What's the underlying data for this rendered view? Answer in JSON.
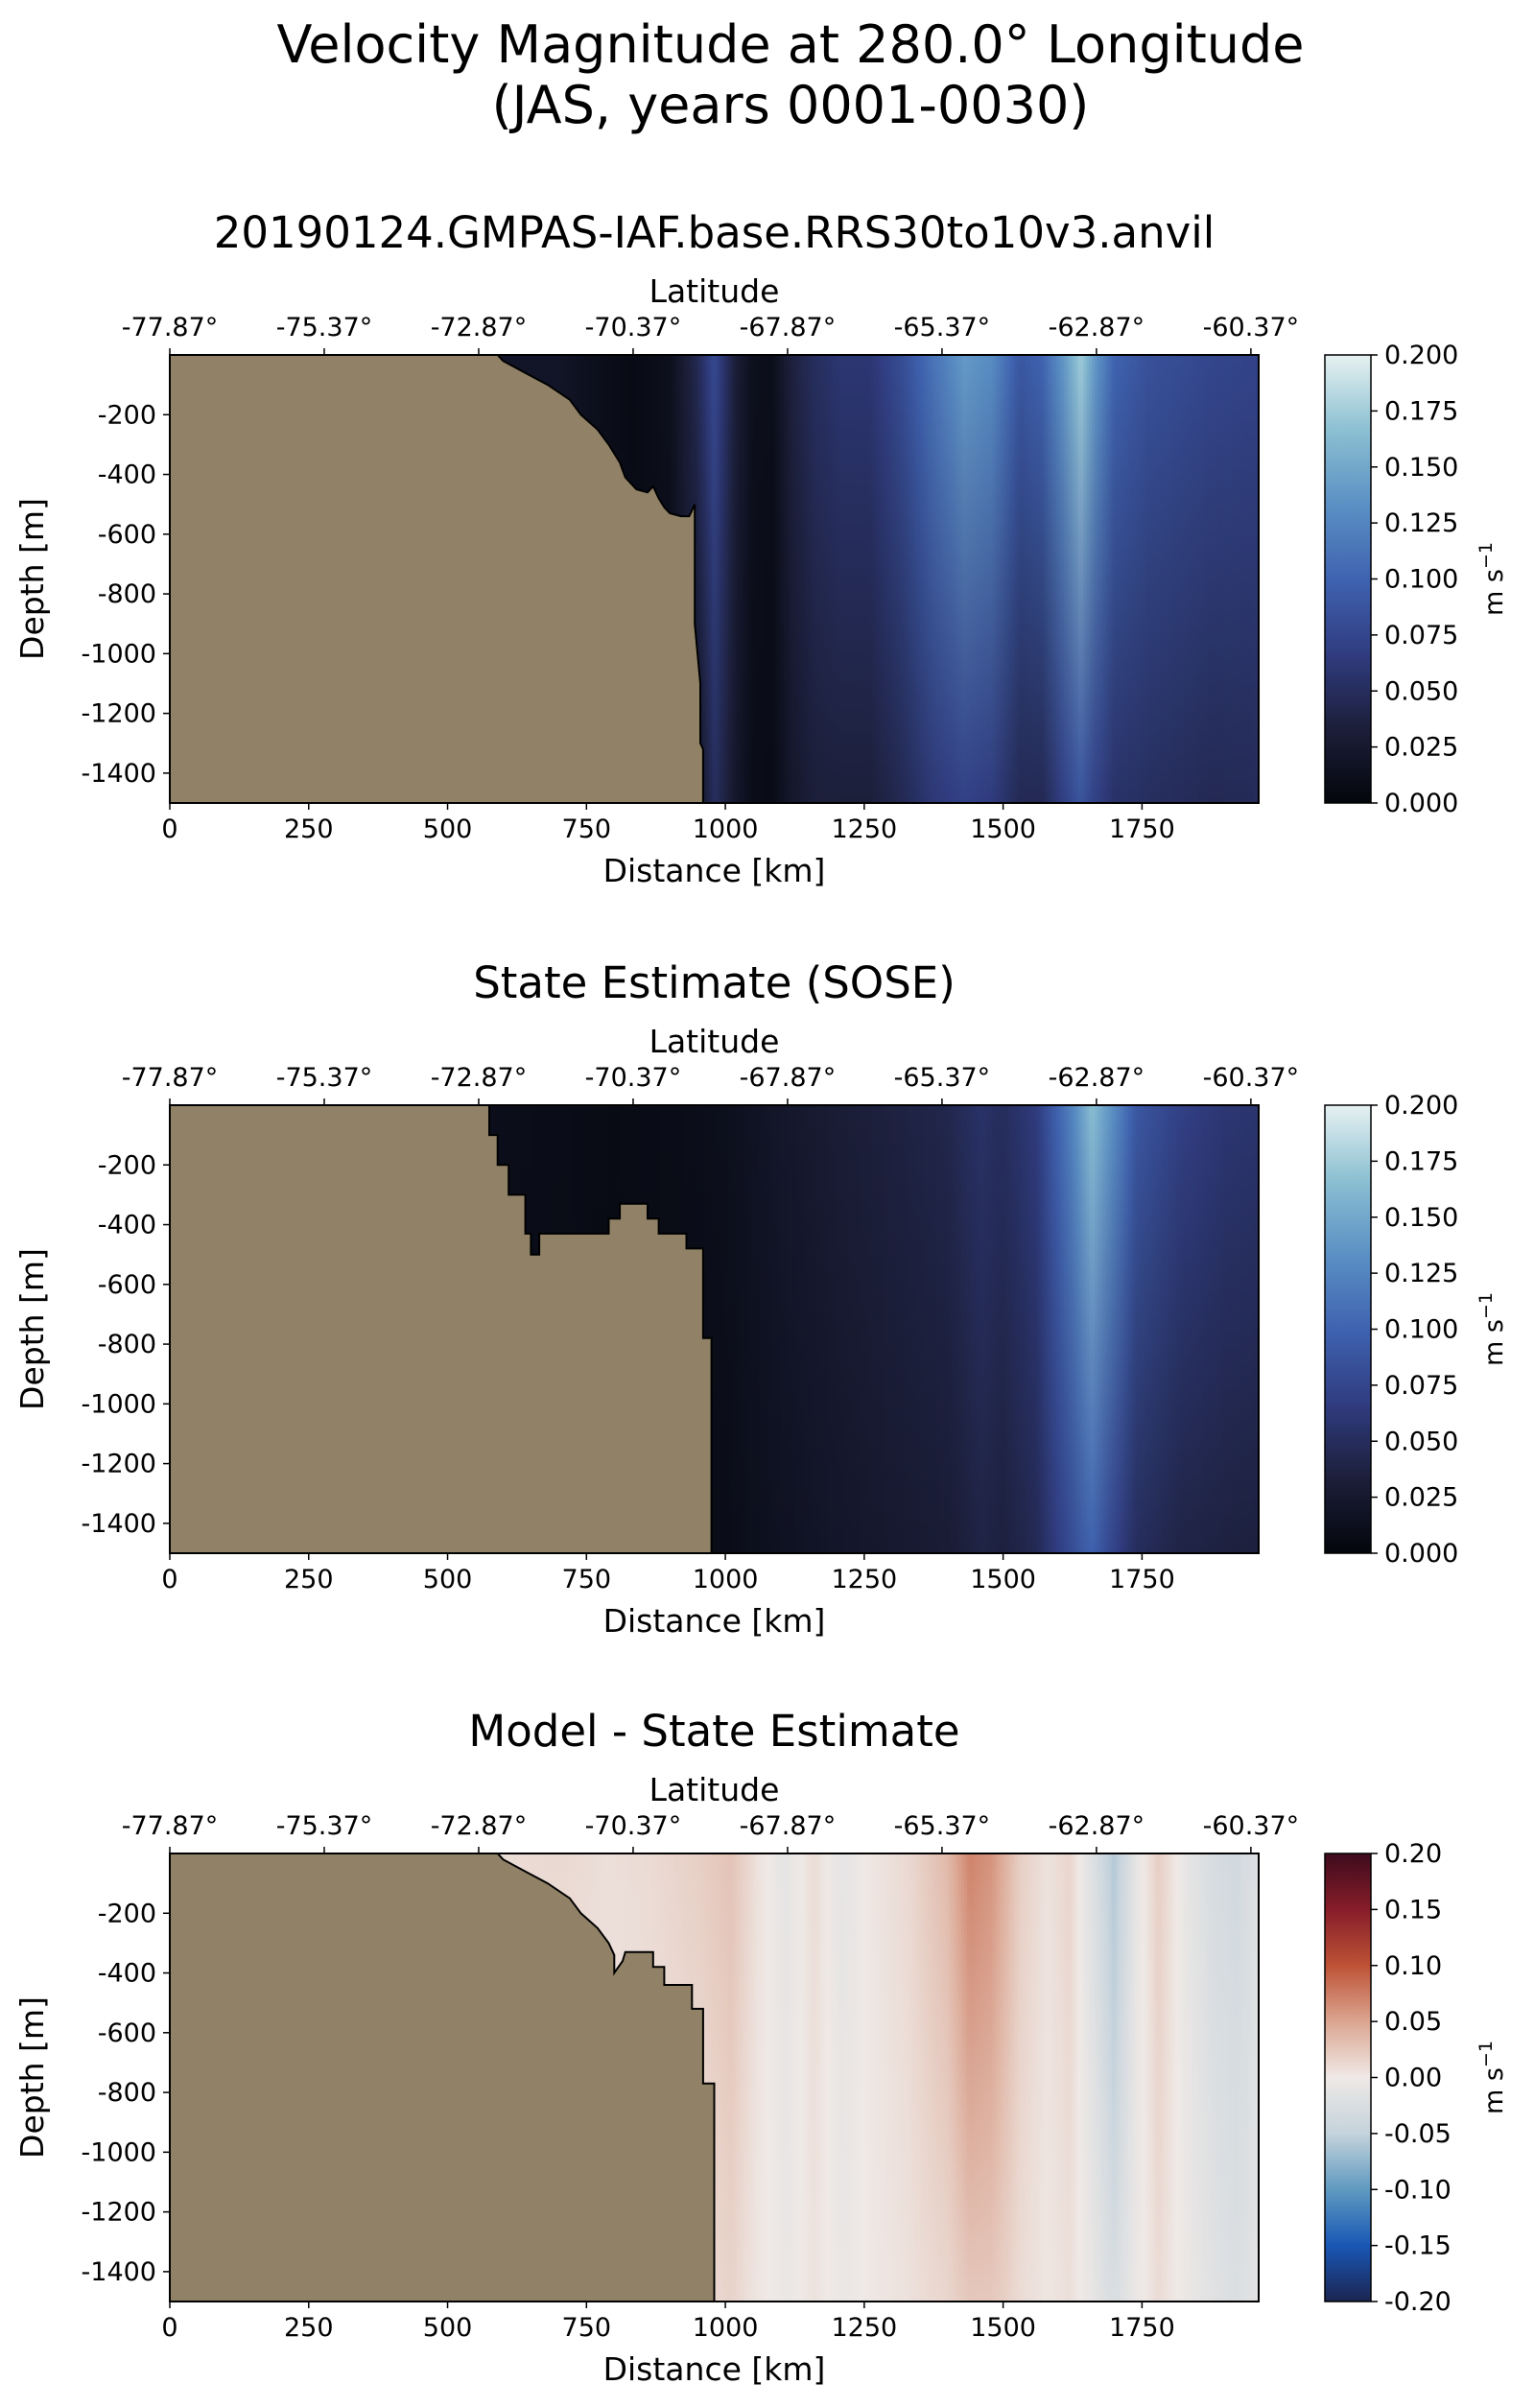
{
  "figure": {
    "title_line1": "Velocity Magnitude at 280.0° Longitude",
    "title_line2": "(JAS, years 0001-0030)"
  },
  "colors": {
    "land": "#918267",
    "axes_edge": "#000000",
    "sequential_colormap": [
      "#04060c",
      "#1c1f3a",
      "#303c80",
      "#3f63b0",
      "#5b90c4",
      "#8cc0d2",
      "#e6f1f1"
    ],
    "diverging_colormap": [
      "#1b2551",
      "#1a57b5",
      "#5f9ac0",
      "#c5d3dc",
      "#efe9e6",
      "#dba590",
      "#bd5236",
      "#871d29",
      "#3d0b1e"
    ]
  },
  "chart_data": [
    {
      "type": "heatmap",
      "title": "20190124.GMPAS-IAF.base.RRS30to10v3.anvil",
      "xlabel": "Distance [km]",
      "ylabel": "Depth [m]",
      "top_xlabel": "Latitude",
      "xlim": [
        0,
        1960
      ],
      "ylim": [
        -1500,
        0
      ],
      "x_ticks": [
        0,
        250,
        500,
        750,
        1000,
        1250,
        1500,
        1750
      ],
      "y_ticks": [
        -200,
        -400,
        -600,
        -800,
        -1000,
        -1200,
        -1400
      ],
      "top_tick_positions_km": [
        0,
        278,
        556,
        834,
        1112,
        1390,
        1668,
        1946
      ],
      "top_tick_labels": [
        "-77.87°",
        "-75.37°",
        "-72.87°",
        "-70.37°",
        "-67.87°",
        "-65.37°",
        "-62.87°",
        "-60.37°"
      ],
      "colorbar": {
        "label": "m s",
        "label_superscript": "−1",
        "min": 0.0,
        "max": 0.2,
        "ticks": [
          "0.000",
          "0.025",
          "0.050",
          "0.075",
          "0.100",
          "0.125",
          "0.150",
          "0.175",
          "0.200"
        ],
        "colormap": "sequential"
      },
      "bathymetry_km_m": [
        [
          0,
          0
        ],
        [
          590,
          0
        ],
        [
          600,
          -20
        ],
        [
          640,
          -60
        ],
        [
          680,
          -100
        ],
        [
          720,
          -150
        ],
        [
          740,
          -200
        ],
        [
          770,
          -250
        ],
        [
          790,
          -300
        ],
        [
          810,
          -360
        ],
        [
          820,
          -410
        ],
        [
          840,
          -450
        ],
        [
          860,
          -460
        ],
        [
          870,
          -440
        ],
        [
          880,
          -480
        ],
        [
          890,
          -510
        ],
        [
          900,
          -530
        ],
        [
          920,
          -540
        ],
        [
          935,
          -540
        ],
        [
          940,
          -520
        ],
        [
          945,
          -500
        ],
        [
          945,
          -900
        ],
        [
          950,
          -1000
        ],
        [
          955,
          -1100
        ],
        [
          955,
          -1300
        ],
        [
          960,
          -1320
        ],
        [
          960,
          -1500
        ]
      ],
      "column_profile_km_ms": [
        [
          0,
          0.02
        ],
        [
          600,
          0.02
        ],
        [
          700,
          0.02
        ],
        [
          760,
          0.012
        ],
        [
          830,
          0.006
        ],
        [
          900,
          0.012
        ],
        [
          950,
          0.045
        ],
        [
          980,
          0.078
        ],
        [
          1020,
          0.03
        ],
        [
          1050,
          0.012
        ],
        [
          1085,
          0.01
        ],
        [
          1120,
          0.035
        ],
        [
          1160,
          0.05
        ],
        [
          1210,
          0.06
        ],
        [
          1260,
          0.06
        ],
        [
          1320,
          0.082
        ],
        [
          1370,
          0.11
        ],
        [
          1430,
          0.14
        ],
        [
          1480,
          0.13
        ],
        [
          1530,
          0.09
        ],
        [
          1570,
          0.1
        ],
        [
          1610,
          0.14
        ],
        [
          1640,
          0.175
        ],
        [
          1665,
          0.14
        ],
        [
          1700,
          0.1
        ],
        [
          1760,
          0.085
        ],
        [
          1820,
          0.08
        ],
        [
          1880,
          0.075
        ],
        [
          1960,
          0.072
        ]
      ],
      "depth_attenuation": [
        0.45,
        0.35,
        0.3,
        0.12,
        0.12,
        0.2,
        0.55,
        0.35,
        0.3,
        0.3,
        0.3,
        0.35,
        0.35,
        0.45,
        0.45,
        0.45,
        0.45,
        0.5,
        0.5,
        0.5,
        0.55,
        0.5,
        0.5,
        0.5,
        0.45,
        0.4,
        0.4,
        0.4,
        0.35
      ]
    },
    {
      "type": "heatmap",
      "title": "State Estimate (SOSE)",
      "xlabel": "Distance [km]",
      "ylabel": "Depth [m]",
      "top_xlabel": "Latitude",
      "xlim": [
        0,
        1960
      ],
      "ylim": [
        -1500,
        0
      ],
      "x_ticks": [
        0,
        250,
        500,
        750,
        1000,
        1250,
        1500,
        1750
      ],
      "y_ticks": [
        -200,
        -400,
        -600,
        -800,
        -1000,
        -1200,
        -1400
      ],
      "top_tick_positions_km": [
        0,
        278,
        556,
        834,
        1112,
        1390,
        1668,
        1946
      ],
      "top_tick_labels": [
        "-77.87°",
        "-75.37°",
        "-72.87°",
        "-70.37°",
        "-67.87°",
        "-65.37°",
        "-62.87°",
        "-60.37°"
      ],
      "colorbar": {
        "label": "m s",
        "label_superscript": "−1",
        "min": 0.0,
        "max": 0.2,
        "ticks": [
          "0.000",
          "0.025",
          "0.050",
          "0.075",
          "0.100",
          "0.125",
          "0.150",
          "0.175",
          "0.200"
        ],
        "colormap": "sequential"
      },
      "bathymetry_km_m": [
        [
          0,
          0
        ],
        [
          575,
          0
        ],
        [
          575,
          -100
        ],
        [
          590,
          -100
        ],
        [
          590,
          -200
        ],
        [
          610,
          -200
        ],
        [
          610,
          -300
        ],
        [
          640,
          -300
        ],
        [
          640,
          -430
        ],
        [
          650,
          -430
        ],
        [
          650,
          -500
        ],
        [
          665,
          -500
        ],
        [
          665,
          -430
        ],
        [
          790,
          -430
        ],
        [
          790,
          -380
        ],
        [
          810,
          -380
        ],
        [
          810,
          -330
        ],
        [
          860,
          -330
        ],
        [
          860,
          -380
        ],
        [
          880,
          -380
        ],
        [
          880,
          -430
        ],
        [
          930,
          -430
        ],
        [
          930,
          -480
        ],
        [
          960,
          -480
        ],
        [
          960,
          -780
        ],
        [
          975,
          -780
        ],
        [
          975,
          -1500
        ]
      ],
      "column_profile_km_ms": [
        [
          0,
          0.01
        ],
        [
          600,
          0.01
        ],
        [
          800,
          0.006
        ],
        [
          900,
          0.008
        ],
        [
          1000,
          0.012
        ],
        [
          1100,
          0.022
        ],
        [
          1200,
          0.03
        ],
        [
          1300,
          0.036
        ],
        [
          1400,
          0.042
        ],
        [
          1460,
          0.055
        ],
        [
          1500,
          0.05
        ],
        [
          1560,
          0.065
        ],
        [
          1620,
          0.12
        ],
        [
          1660,
          0.165
        ],
        [
          1700,
          0.13
        ],
        [
          1740,
          0.09
        ],
        [
          1820,
          0.07
        ],
        [
          1900,
          0.06
        ],
        [
          1960,
          0.058
        ]
      ],
      "depth_attenuation": [
        0.2,
        0.2,
        0.2,
        0.3,
        0.3,
        0.3,
        0.3,
        0.3,
        0.3,
        0.3,
        0.3,
        0.3,
        0.35,
        0.4,
        0.45,
        0.45,
        0.45,
        0.4,
        0.4
      ]
    },
    {
      "type": "heatmap",
      "title": "Model - State Estimate",
      "xlabel": "Distance [km]",
      "ylabel": "Depth [m]",
      "top_xlabel": "Latitude",
      "xlim": [
        0,
        1960
      ],
      "ylim": [
        -1500,
        0
      ],
      "x_ticks": [
        0,
        250,
        500,
        750,
        1000,
        1250,
        1500,
        1750
      ],
      "y_ticks": [
        -200,
        -400,
        -600,
        -800,
        -1000,
        -1200,
        -1400
      ],
      "top_tick_positions_km": [
        0,
        278,
        556,
        834,
        1112,
        1390,
        1668,
        1946
      ],
      "top_tick_labels": [
        "-77.87°",
        "-75.37°",
        "-72.87°",
        "-70.37°",
        "-67.87°",
        "-65.37°",
        "-62.87°",
        "-60.37°"
      ],
      "colorbar": {
        "label": "m s",
        "label_superscript": "−1",
        "min": -0.2,
        "max": 0.2,
        "ticks": [
          "-0.20",
          "-0.15",
          "-0.10",
          "-0.05",
          "0.00",
          "0.05",
          "0.10",
          "0.15",
          "0.20"
        ],
        "colormap": "diverging"
      },
      "bathymetry_km_m": [
        [
          0,
          0
        ],
        [
          590,
          0
        ],
        [
          600,
          -20
        ],
        [
          640,
          -60
        ],
        [
          680,
          -100
        ],
        [
          720,
          -150
        ],
        [
          740,
          -200
        ],
        [
          770,
          -250
        ],
        [
          790,
          -300
        ],
        [
          800,
          -340
        ],
        [
          800,
          -400
        ],
        [
          815,
          -360
        ],
        [
          820,
          -330
        ],
        [
          870,
          -330
        ],
        [
          870,
          -380
        ],
        [
          890,
          -380
        ],
        [
          890,
          -440
        ],
        [
          940,
          -440
        ],
        [
          940,
          -520
        ],
        [
          960,
          -520
        ],
        [
          960,
          -770
        ],
        [
          980,
          -770
        ],
        [
          980,
          -1500
        ]
      ],
      "column_profile_km_ms": [
        [
          0,
          0
        ],
        [
          620,
          0.01
        ],
        [
          700,
          0.012
        ],
        [
          790,
          0.008
        ],
        [
          860,
          0.01
        ],
        [
          960,
          0.02
        ],
        [
          1010,
          0.028
        ],
        [
          1060,
          0.005
        ],
        [
          1110,
          -0.012
        ],
        [
          1160,
          0.01
        ],
        [
          1210,
          -0.012
        ],
        [
          1260,
          0.002
        ],
        [
          1330,
          0.012
        ],
        [
          1400,
          0.035
        ],
        [
          1440,
          0.07
        ],
        [
          1480,
          0.06
        ],
        [
          1530,
          0.02
        ],
        [
          1580,
          0.005
        ],
        [
          1620,
          0.015
        ],
        [
          1660,
          -0.02
        ],
        [
          1700,
          -0.06
        ],
        [
          1740,
          -0.01
        ],
        [
          1780,
          0.02
        ],
        [
          1830,
          -0.01
        ],
        [
          1880,
          -0.03
        ],
        [
          1920,
          -0.035
        ],
        [
          1960,
          -0.02
        ]
      ],
      "depth_attenuation": [
        0.5,
        0.5,
        0.5,
        0.5,
        0.5,
        0.5,
        0.4,
        0.5,
        0.5,
        0.5,
        0.5,
        0.5,
        0.5,
        0.6,
        0.65,
        0.6,
        0.5,
        0.5,
        0.5,
        0.5,
        0.55,
        0.5,
        0.5,
        0.5,
        0.4,
        0.3,
        0.3
      ]
    }
  ]
}
